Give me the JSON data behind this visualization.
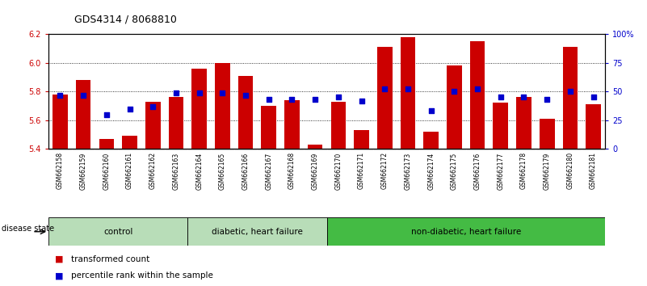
{
  "title": "GDS4314 / 8068810",
  "samples": [
    "GSM662158",
    "GSM662159",
    "GSM662160",
    "GSM662161",
    "GSM662162",
    "GSM662163",
    "GSM662164",
    "GSM662165",
    "GSM662166",
    "GSM662167",
    "GSM662168",
    "GSM662169",
    "GSM662170",
    "GSM662171",
    "GSM662172",
    "GSM662173",
    "GSM662174",
    "GSM662175",
    "GSM662176",
    "GSM662177",
    "GSM662178",
    "GSM662179",
    "GSM662180",
    "GSM662181"
  ],
  "transformed_count": [
    5.78,
    5.88,
    5.47,
    5.49,
    5.73,
    5.76,
    5.96,
    6.0,
    5.91,
    5.7,
    5.74,
    5.43,
    5.73,
    5.53,
    6.11,
    6.18,
    5.52,
    5.98,
    6.15,
    5.72,
    5.76,
    5.61,
    6.11,
    5.71
  ],
  "percentile_rank": [
    47,
    47,
    30,
    35,
    37,
    49,
    49,
    49,
    47,
    43,
    43,
    43,
    45,
    42,
    52,
    52,
    33,
    50,
    52,
    45,
    45,
    43,
    50,
    45
  ],
  "groups_config": [
    {
      "label": "control",
      "start": 0,
      "end": 6,
      "color": "#b8ddb8"
    },
    {
      "label": "diabetic, heart failure",
      "start": 6,
      "end": 12,
      "color": "#b8ddb8"
    },
    {
      "label": "non-diabetic, heart failure",
      "start": 12,
      "end": 24,
      "color": "#44bb44"
    }
  ],
  "ylim_left": [
    5.4,
    6.2
  ],
  "ylim_right": [
    0,
    100
  ],
  "yticks_left": [
    5.4,
    5.6,
    5.8,
    6.0,
    6.2
  ],
  "yticks_right": [
    0,
    25,
    50,
    75,
    100
  ],
  "ytick_right_labels": [
    "0",
    "25",
    "50",
    "75",
    "100%"
  ],
  "bar_color": "#cc0000",
  "dot_color": "#0000cc",
  "bg_plot": "#ffffff",
  "tick_area_color": "#cccccc",
  "gridlines": [
    5.6,
    5.8,
    6.0
  ],
  "legend_items": [
    {
      "color": "#cc0000",
      "label": "transformed count"
    },
    {
      "color": "#0000cc",
      "label": "percentile rank within the sample"
    }
  ]
}
